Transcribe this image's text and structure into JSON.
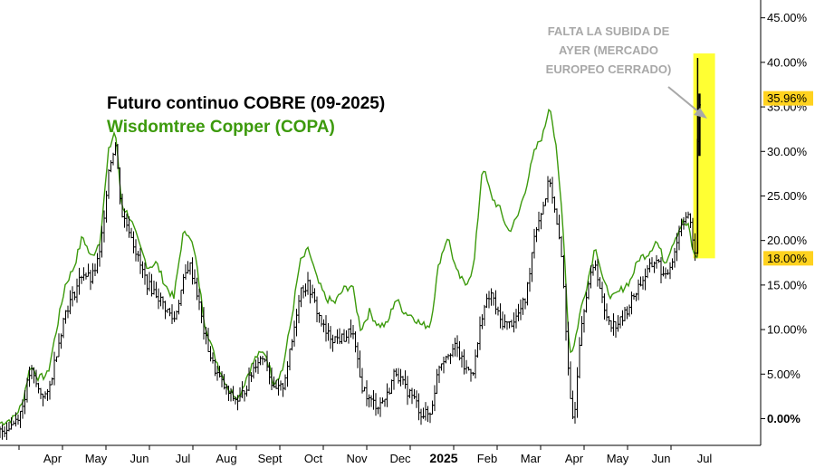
{
  "chart_data": {
    "type": "line",
    "title": "Futuro continuo COBRE (09-2025)",
    "subtitle": "Wisdomtree Copper (COPA)",
    "annotation": [
      "FALTA LA SUBIDA DE",
      "AYER (MERCADO",
      "EUROPEO CERRADO)"
    ],
    "y_axis": {
      "position": "right",
      "ylim": [
        -3,
        47
      ],
      "ticks": [
        "45.00%",
        "40.00%",
        "35.00%",
        "30.00%",
        "25.00%",
        "20.00%",
        "15.00%",
        "10.00%",
        "5.00%",
        "0.00%"
      ],
      "tick_values": [
        45,
        40,
        35,
        30,
        25,
        20,
        15,
        10,
        5,
        0
      ],
      "highlight_labels": [
        {
          "label": "35.96%",
          "value": 35.96
        },
        {
          "label": "18.00%",
          "value": 18.0
        }
      ]
    },
    "x_axis": {
      "range": [
        0,
        17.5
      ],
      "ticks": [
        {
          "label": "Apr",
          "x": 1
        },
        {
          "label": "May",
          "x": 2
        },
        {
          "label": "Jun",
          "x": 3
        },
        {
          "label": "Jul",
          "x": 4
        },
        {
          "label": "Aug",
          "x": 5
        },
        {
          "label": "Sept",
          "x": 6
        },
        {
          "label": "Oct",
          "x": 7
        },
        {
          "label": "Nov",
          "x": 8
        },
        {
          "label": "Dec",
          "x": 9
        },
        {
          "label": "2025",
          "x": 10,
          "bold": true
        },
        {
          "label": "Feb",
          "x": 11
        },
        {
          "label": "Mar",
          "x": 12
        },
        {
          "label": "Apr",
          "x": 13
        },
        {
          "label": "May",
          "x": 14
        },
        {
          "label": "Jun",
          "x": 15
        },
        {
          "label": "Jul",
          "x": 16
        }
      ]
    },
    "grid": false,
    "highlight_band": {
      "x_from": 15.95,
      "x_to": 16.45,
      "y_from": 18.0,
      "y_to": 41.0,
      "color": "#ffff33"
    },
    "series": [
      {
        "name": "Futuro continuo COBRE (09-2025)",
        "style": "ohlc",
        "color": "#000000",
        "points": [
          [
            0.0,
            -1.5
          ],
          [
            0.3,
            -0.5
          ],
          [
            0.5,
            1.0
          ],
          [
            0.7,
            5.5
          ],
          [
            0.9,
            3.0
          ],
          [
            1.1,
            2.5
          ],
          [
            1.3,
            7.5
          ],
          [
            1.5,
            12.0
          ],
          [
            1.7,
            14.0
          ],
          [
            1.9,
            16.5
          ],
          [
            2.1,
            15.5
          ],
          [
            2.3,
            18.5
          ],
          [
            2.5,
            28.0
          ],
          [
            2.65,
            31.0
          ],
          [
            2.8,
            23.0
          ],
          [
            3.0,
            21.0
          ],
          [
            3.2,
            17.5
          ],
          [
            3.4,
            15.0
          ],
          [
            3.6,
            14.0
          ],
          [
            3.8,
            12.5
          ],
          [
            4.0,
            11.0
          ],
          [
            4.2,
            15.0
          ],
          [
            4.35,
            17.5
          ],
          [
            4.5,
            15.0
          ],
          [
            4.7,
            9.5
          ],
          [
            4.9,
            6.0
          ],
          [
            5.1,
            4.0
          ],
          [
            5.3,
            2.5
          ],
          [
            5.5,
            2.0
          ],
          [
            5.7,
            4.0
          ],
          [
            5.9,
            6.5
          ],
          [
            6.1,
            7.0
          ],
          [
            6.3,
            3.0
          ],
          [
            6.5,
            3.5
          ],
          [
            6.7,
            8.0
          ],
          [
            6.9,
            14.5
          ],
          [
            7.1,
            15.0
          ],
          [
            7.3,
            12.0
          ],
          [
            7.5,
            9.5
          ],
          [
            7.7,
            9.0
          ],
          [
            7.9,
            9.0
          ],
          [
            8.1,
            10.0
          ],
          [
            8.3,
            4.0
          ],
          [
            8.5,
            2.0
          ],
          [
            8.7,
            1.5
          ],
          [
            8.9,
            2.5
          ],
          [
            9.1,
            5.5
          ],
          [
            9.3,
            3.5
          ],
          [
            9.5,
            2.5
          ],
          [
            9.7,
            0.5
          ],
          [
            9.9,
            0.5
          ],
          [
            10.1,
            6.0
          ],
          [
            10.3,
            7.5
          ],
          [
            10.5,
            8.0
          ],
          [
            10.7,
            5.5
          ],
          [
            10.9,
            5.5
          ],
          [
            11.1,
            12.0
          ],
          [
            11.3,
            14.0
          ],
          [
            11.5,
            11.0
          ],
          [
            11.7,
            10.5
          ],
          [
            11.9,
            11.5
          ],
          [
            12.1,
            13.5
          ],
          [
            12.3,
            21.0
          ],
          [
            12.5,
            24.0
          ],
          [
            12.65,
            27.0
          ],
          [
            12.8,
            22.0
          ],
          [
            12.95,
            17.0
          ],
          [
            13.1,
            2.5
          ],
          [
            13.2,
            -0.5
          ],
          [
            13.35,
            10.0
          ],
          [
            13.5,
            14.5
          ],
          [
            13.7,
            17.5
          ],
          [
            13.9,
            12.0
          ],
          [
            14.1,
            10.5
          ],
          [
            14.3,
            11.0
          ],
          [
            14.5,
            13.0
          ],
          [
            14.7,
            15.0
          ],
          [
            14.9,
            16.5
          ],
          [
            15.1,
            18.0
          ],
          [
            15.3,
            15.5
          ],
          [
            15.5,
            18.5
          ],
          [
            15.7,
            22.5
          ],
          [
            15.85,
            23.0
          ],
          [
            15.95,
            19.0
          ],
          [
            16.0,
            19.0
          ],
          [
            16.05,
            33.0
          ],
          [
            16.1,
            35.5
          ]
        ]
      },
      {
        "name": "Wisdomtree Copper (COPA)",
        "style": "line",
        "color": "#3c9a0c",
        "points": [
          [
            0.0,
            -0.5
          ],
          [
            0.3,
            0.0
          ],
          [
            0.5,
            1.5
          ],
          [
            0.7,
            6.0
          ],
          [
            0.9,
            4.5
          ],
          [
            1.1,
            5.0
          ],
          [
            1.3,
            10.0
          ],
          [
            1.5,
            15.0
          ],
          [
            1.7,
            17.0
          ],
          [
            1.9,
            20.5
          ],
          [
            2.1,
            18.0
          ],
          [
            2.3,
            20.0
          ],
          [
            2.5,
            30.0
          ],
          [
            2.65,
            32.5
          ],
          [
            2.8,
            24.0
          ],
          [
            3.0,
            22.5
          ],
          [
            3.2,
            19.5
          ],
          [
            3.4,
            17.0
          ],
          [
            3.6,
            17.5
          ],
          [
            3.8,
            15.0
          ],
          [
            4.0,
            13.5
          ],
          [
            4.2,
            20.5
          ],
          [
            4.35,
            21.0
          ],
          [
            4.5,
            18.0
          ],
          [
            4.7,
            11.0
          ],
          [
            4.9,
            7.5
          ],
          [
            5.1,
            5.0
          ],
          [
            5.3,
            3.0
          ],
          [
            5.5,
            2.5
          ],
          [
            5.7,
            5.0
          ],
          [
            5.9,
            7.0
          ],
          [
            6.1,
            7.5
          ],
          [
            6.3,
            4.0
          ],
          [
            6.5,
            5.5
          ],
          [
            6.7,
            11.0
          ],
          [
            6.9,
            17.5
          ],
          [
            7.1,
            19.0
          ],
          [
            7.3,
            15.5
          ],
          [
            7.5,
            13.5
          ],
          [
            7.7,
            13.0
          ],
          [
            7.9,
            14.5
          ],
          [
            8.1,
            15.0
          ],
          [
            8.3,
            10.0
          ],
          [
            8.5,
            12.0
          ],
          [
            8.7,
            10.5
          ],
          [
            8.9,
            10.5
          ],
          [
            9.1,
            13.5
          ],
          [
            9.3,
            12.0
          ],
          [
            9.5,
            11.5
          ],
          [
            9.7,
            10.5
          ],
          [
            9.9,
            10.5
          ],
          [
            10.1,
            17.5
          ],
          [
            10.3,
            20.5
          ],
          [
            10.5,
            16.5
          ],
          [
            10.7,
            15.0
          ],
          [
            10.9,
            17.0
          ],
          [
            11.1,
            28.5
          ],
          [
            11.3,
            25.0
          ],
          [
            11.5,
            23.5
          ],
          [
            11.7,
            21.0
          ],
          [
            11.9,
            22.5
          ],
          [
            12.1,
            26.0
          ],
          [
            12.3,
            30.0
          ],
          [
            12.5,
            32.0
          ],
          [
            12.65,
            35.5
          ],
          [
            12.8,
            30.0
          ],
          [
            12.95,
            22.0
          ],
          [
            13.1,
            7.5
          ],
          [
            13.2,
            8.0
          ],
          [
            13.35,
            12.0
          ],
          [
            13.5,
            15.0
          ],
          [
            13.7,
            19.5
          ],
          [
            13.9,
            15.0
          ],
          [
            14.1,
            13.5
          ],
          [
            14.3,
            14.5
          ],
          [
            14.5,
            15.5
          ],
          [
            14.7,
            18.0
          ],
          [
            14.9,
            18.5
          ],
          [
            15.1,
            20.0
          ],
          [
            15.3,
            17.5
          ],
          [
            15.5,
            20.0
          ],
          [
            15.7,
            22.0
          ],
          [
            15.85,
            21.5
          ],
          [
            15.95,
            18.5
          ],
          [
            16.05,
            18.2
          ]
        ]
      }
    ]
  }
}
